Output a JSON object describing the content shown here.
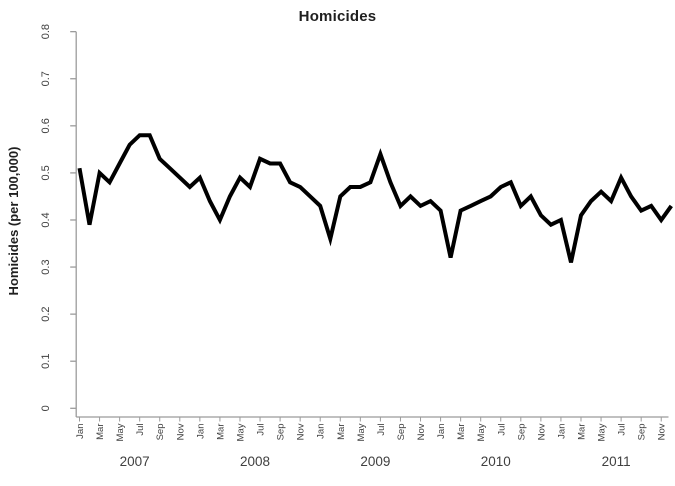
{
  "title": "Homicides",
  "colors": {
    "line": "#000000",
    "axis": "#9b9b9b",
    "tick_text": "#404040",
    "title_text": "#1f1f1f"
  },
  "y_axis": {
    "label": "Homicides (per 100,000)",
    "ticks": [
      "0",
      "0.1",
      "0.2",
      "0.3",
      "0.4",
      "0.5",
      "0.6",
      "0.7",
      "0.8"
    ]
  },
  "x_axis": {
    "month_tick_labels": [
      "Jan",
      "Mar",
      "May",
      "Jul",
      "Sep",
      "Nov"
    ],
    "year_labels": [
      "2007",
      "2008",
      "2009",
      "2010",
      "2011"
    ]
  },
  "chart_data": {
    "type": "line",
    "title": "Homicides",
    "xlabel": "",
    "ylabel": "Homicides (per 100,000)",
    "ylim": [
      0,
      0.8
    ],
    "y_tick_step": 0.1,
    "x_frequency": "monthly",
    "x_range": [
      "Jan 2007",
      "Dec 2011"
    ],
    "grid": false,
    "legend": "none",
    "series": [
      {
        "name": "Homicides (per 100,000)",
        "values": [
          0.51,
          0.39,
          0.5,
          0.48,
          0.52,
          0.56,
          0.58,
          0.58,
          0.53,
          0.51,
          0.49,
          0.47,
          0.49,
          0.44,
          0.4,
          0.45,
          0.49,
          0.47,
          0.53,
          0.52,
          0.52,
          0.48,
          0.47,
          0.45,
          0.43,
          0.36,
          0.45,
          0.47,
          0.47,
          0.48,
          0.54,
          0.48,
          0.43,
          0.45,
          0.43,
          0.44,
          0.42,
          0.32,
          0.42,
          0.43,
          0.44,
          0.45,
          0.47,
          0.48,
          0.43,
          0.45,
          0.41,
          0.39,
          0.4,
          0.31,
          0.41,
          0.44,
          0.46,
          0.44,
          0.49,
          0.45,
          0.42,
          0.43,
          0.4,
          0.43
        ]
      }
    ]
  }
}
